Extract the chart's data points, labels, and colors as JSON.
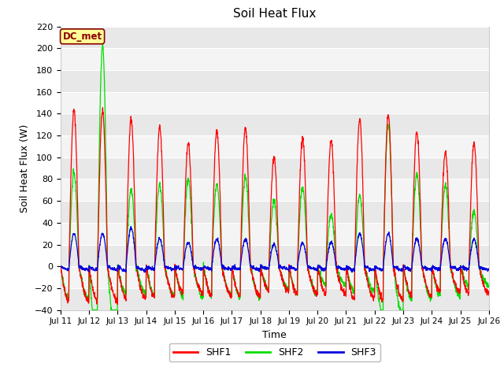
{
  "title": "Soil Heat Flux",
  "xlabel": "Time",
  "ylabel": "Soil Heat Flux (W)",
  "annotation": "DC_met",
  "ylim": [
    -40,
    220
  ],
  "yticks": [
    -40,
    -20,
    0,
    20,
    40,
    60,
    80,
    100,
    120,
    140,
    160,
    180,
    200,
    220
  ],
  "legend_labels": [
    "SHF1",
    "SHF2",
    "SHF3"
  ],
  "colors": {
    "SHF1": "#ff0000",
    "SHF2": "#00dd00",
    "SHF3": "#0000dd"
  },
  "fig_bg_color": "#ffffff",
  "plot_bg_color": "#f0f0f0",
  "grid_color": "#ffffff",
  "n_days": 15,
  "points_per_day": 144,
  "start_day": 11,
  "shf1_peaks": [
    143,
    143,
    135,
    128,
    113,
    124,
    127,
    100,
    117,
    115,
    135,
    139,
    124,
    105,
    113
  ],
  "shf2_peaks": [
    85,
    203,
    70,
    75,
    80,
    75,
    82,
    60,
    72,
    47,
    65,
    130,
    85,
    75,
    50
  ],
  "shf3_peaks": [
    30,
    30,
    35,
    25,
    22,
    25,
    25,
    20,
    22,
    22,
    30,
    30,
    25,
    25,
    25
  ]
}
